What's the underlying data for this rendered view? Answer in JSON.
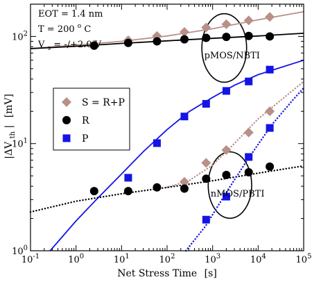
{
  "chart_data": {
    "type": "scatter",
    "title": "",
    "xlabel": "Net Stress Time",
    "xunit": "[s]",
    "ylabel_main": "|ΔV",
    "ylabel_sub": "th",
    "ylabel_tail": "|",
    "yunit": "[mV]",
    "xscale": "log",
    "yscale": "log",
    "xlim": [
      0.1,
      100000
    ],
    "ylim": [
      1,
      200
    ],
    "grid": false,
    "x_ticks": [
      {
        "base": "10",
        "exp": "-1",
        "value": 0.1
      },
      {
        "base": "10",
        "exp": "0",
        "value": 1
      },
      {
        "base": "10",
        "exp": "1",
        "value": 10
      },
      {
        "base": "10",
        "exp": "2",
        "value": 100
      },
      {
        "base": "10",
        "exp": "3",
        "value": 1000
      },
      {
        "base": "10",
        "exp": "4",
        "value": 10000
      },
      {
        "base": "10",
        "exp": "5",
        "value": 100000
      }
    ],
    "y_ticks": [
      {
        "base": "10",
        "exp": "0",
        "value": 1
      },
      {
        "base": "10",
        "exp": "1",
        "value": 10
      },
      {
        "base": "10",
        "exp": "2",
        "value": 100
      }
    ],
    "conditions": [
      {
        "pre": "EOT = 1.4 nm",
        "sup": "",
        "post": ""
      },
      {
        "pre": "T  = 200",
        "sup": "o",
        "post": "C"
      },
      {
        "pre": "V",
        "sub": "s",
        "post": " = -/+2.0 V"
      }
    ],
    "legend": {
      "placement": "middle-left",
      "entries": [
        {
          "label": "S = R+P",
          "marker": "diamond",
          "color": "#b89088"
        },
        {
          "label": "R",
          "marker": "circle",
          "color": "#000000"
        },
        {
          "label": "P",
          "marker": "square",
          "color": "#1414e6"
        }
      ]
    },
    "annotations": [
      {
        "label": "pMOS/NBTI",
        "cx": 1800,
        "cy": 78,
        "rx": 3.1,
        "ry": 0.64
      },
      {
        "label": "nMOS/PBTI",
        "cx": 2400,
        "cy": 4.1,
        "rx": 3.0,
        "ry": 0.62
      }
    ],
    "series": [
      {
        "name": "S = R+P",
        "device": "pMOS/NBTI",
        "marker": "diamond",
        "color": "#b89088",
        "points": [
          [
            2.5,
            84
          ],
          [
            14,
            92
          ],
          [
            60,
            101
          ],
          [
            240,
            110
          ],
          [
            720,
            121
          ],
          [
            2000,
            130
          ],
          [
            6200,
            141
          ],
          [
            18000,
            152
          ]
        ]
      },
      {
        "name": "R",
        "device": "pMOS/NBTI",
        "marker": "circle",
        "color": "#000000",
        "points": [
          [
            2.5,
            82
          ],
          [
            14,
            87
          ],
          [
            60,
            90
          ],
          [
            240,
            94
          ],
          [
            720,
            97
          ],
          [
            2000,
            99
          ],
          [
            6200,
            101
          ],
          [
            18000,
            100
          ]
        ]
      },
      {
        "name": "P",
        "device": "pMOS/NBTI",
        "marker": "square",
        "color": "#1414e6",
        "points": [
          [
            14,
            4.8
          ],
          [
            60,
            10.1
          ],
          [
            240,
            17.9
          ],
          [
            720,
            23.5
          ],
          [
            2000,
            31
          ],
          [
            6200,
            38
          ],
          [
            18000,
            49
          ]
        ]
      },
      {
        "name": "S = R+P",
        "device": "nMOS/PBTI",
        "marker": "diamond",
        "color": "#b89088",
        "points": [
          [
            240,
            4.4
          ],
          [
            720,
            6.6
          ],
          [
            2000,
            8.7
          ],
          [
            6200,
            12.7
          ],
          [
            18000,
            20
          ]
        ]
      },
      {
        "name": "R",
        "device": "nMOS/PBTI",
        "marker": "circle",
        "color": "#000000",
        "points": [
          [
            2.5,
            3.6
          ],
          [
            14,
            3.6
          ],
          [
            60,
            3.9
          ],
          [
            240,
            3.8
          ],
          [
            720,
            4.7
          ],
          [
            2000,
            5.1
          ],
          [
            6200,
            5.4
          ],
          [
            18000,
            6.1
          ]
        ]
      },
      {
        "name": "P",
        "device": "nMOS/PBTI",
        "marker": "square",
        "color": "#1414e6",
        "points": [
          [
            720,
            1.95
          ],
          [
            2000,
            3.2
          ],
          [
            6200,
            7.5
          ],
          [
            18000,
            14
          ]
        ]
      }
    ],
    "fit_lines": [
      {
        "series": "S = R+P",
        "device": "pMOS/NBTI",
        "style": "solid",
        "color": "#b89088",
        "points": [
          [
            0.1,
            77
          ],
          [
            1,
            83
          ],
          [
            10,
            90
          ],
          [
            100,
            101
          ],
          [
            1000,
            118
          ],
          [
            10000,
            143
          ],
          [
            100000,
            170
          ]
        ]
      },
      {
        "series": "R",
        "device": "pMOS/NBTI",
        "style": "solid",
        "color": "#000000",
        "points": [
          [
            0.1,
            77
          ],
          [
            1,
            81
          ],
          [
            10,
            86
          ],
          [
            100,
            91
          ],
          [
            1000,
            96
          ],
          [
            10000,
            101
          ],
          [
            100000,
            107
          ]
        ]
      },
      {
        "series": "P",
        "device": "pMOS/NBTI",
        "style": "solid",
        "color": "#1414e6",
        "points": [
          [
            0.27,
            1.0
          ],
          [
            1,
            1.9
          ],
          [
            3,
            3.1
          ],
          [
            10,
            5.2
          ],
          [
            30,
            8.4
          ],
          [
            100,
            13.5
          ],
          [
            300,
            19.8
          ],
          [
            1000,
            27
          ],
          [
            3000,
            35
          ],
          [
            10000,
            44
          ],
          [
            100000,
            60
          ]
        ]
      },
      {
        "series": "S = R+P",
        "device": "nMOS/PBTI",
        "style": "dotted",
        "color": "#b89088",
        "points": [
          [
            100,
            3.9
          ],
          [
            300,
            4.5
          ],
          [
            1000,
            6.3
          ],
          [
            3000,
            10
          ],
          [
            10000,
            17
          ],
          [
            100000,
            38
          ]
        ]
      },
      {
        "series": "R",
        "device": "nMOS/PBTI",
        "style": "dotted",
        "color": "#000000",
        "points": [
          [
            0.1,
            2.3
          ],
          [
            1,
            2.9
          ],
          [
            10,
            3.4
          ],
          [
            100,
            3.9
          ],
          [
            1000,
            4.5
          ],
          [
            10000,
            5.3
          ],
          [
            100000,
            6.2
          ]
        ]
      },
      {
        "series": "P",
        "device": "nMOS/PBTI",
        "style": "dotted",
        "color": "#1414e6",
        "points": [
          [
            260,
            1.0
          ],
          [
            700,
            1.7
          ],
          [
            2000,
            3.5
          ],
          [
            6000,
            7.2
          ],
          [
            20000,
            15
          ],
          [
            60000,
            26
          ],
          [
            100000,
            33
          ]
        ]
      }
    ]
  }
}
